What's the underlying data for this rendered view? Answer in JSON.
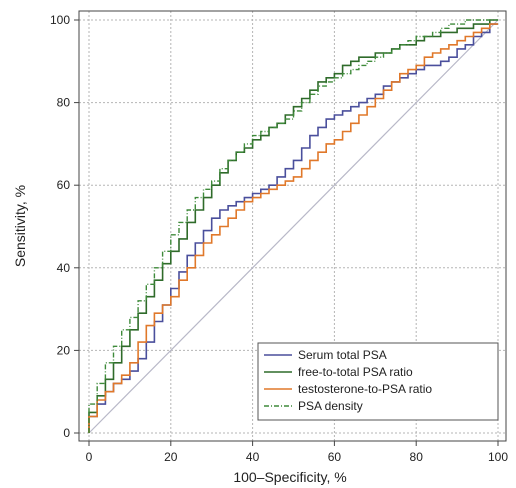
{
  "chart_data": {
    "type": "line",
    "xlabel": "100–Specificity, %",
    "ylabel": "Sensitivity, %",
    "xlim": [
      0,
      100
    ],
    "ylim": [
      0,
      100
    ],
    "xticks": [
      0,
      20,
      40,
      60,
      80,
      100
    ],
    "yticks": [
      0,
      20,
      40,
      60,
      80,
      100
    ],
    "grid": true,
    "legend_position": "bottom-right",
    "reference_line": {
      "x": [
        0,
        100
      ],
      "y": [
        0,
        100
      ],
      "color": "#b8b8c8"
    },
    "series": [
      {
        "name": "Serum total PSA",
        "color": "#4a4f9c",
        "style": "solid",
        "x": [
          0,
          2,
          4,
          6,
          8,
          10,
          12,
          14,
          16,
          18,
          20,
          22,
          24,
          26,
          28,
          30,
          32,
          34,
          36,
          38,
          40,
          42,
          44,
          46,
          48,
          50,
          52,
          54,
          56,
          58,
          60,
          62,
          64,
          66,
          68,
          70,
          72,
          74,
          76,
          78,
          80,
          82,
          84,
          86,
          88,
          90,
          92,
          94,
          96,
          98,
          100
        ],
        "y": [
          0,
          4,
          7,
          10,
          12,
          13,
          15,
          18,
          22,
          27,
          31,
          35,
          39,
          43,
          46,
          49,
          52,
          54,
          55,
          56,
          57,
          58,
          59,
          60,
          62,
          64,
          66,
          69,
          72,
          74,
          76,
          77,
          78,
          79,
          80,
          81,
          82,
          84,
          85,
          86,
          87,
          88,
          89,
          89,
          90,
          91,
          93,
          94,
          96,
          97,
          99
        ]
      },
      {
        "name": "free-to-total PSA ratio",
        "color": "#2f6b2a",
        "style": "solid",
        "x": [
          0,
          2,
          4,
          6,
          8,
          10,
          12,
          14,
          16,
          18,
          20,
          22,
          24,
          26,
          28,
          30,
          32,
          34,
          36,
          38,
          40,
          42,
          44,
          46,
          48,
          50,
          52,
          54,
          56,
          58,
          60,
          62,
          64,
          66,
          68,
          70,
          72,
          74,
          76,
          78,
          80,
          82,
          84,
          86,
          88,
          90,
          92,
          94,
          96,
          98,
          100
        ],
        "y": [
          0,
          5,
          9,
          13,
          17,
          21,
          25,
          29,
          33,
          37,
          41,
          44,
          47,
          51,
          54,
          57,
          60,
          63,
          66,
          68,
          69,
          71,
          72,
          74,
          75,
          77,
          79,
          81,
          83,
          85,
          86,
          87,
          89,
          90,
          91,
          91,
          92,
          92,
          93,
          94,
          94,
          95,
          96,
          96,
          97,
          97,
          98,
          98,
          99,
          99,
          100
        ]
      },
      {
        "name": "testosterone-to-PSA ratio",
        "color": "#e0782a",
        "style": "solid",
        "x": [
          0,
          2,
          4,
          6,
          8,
          10,
          12,
          14,
          16,
          18,
          20,
          22,
          24,
          26,
          28,
          30,
          32,
          34,
          36,
          38,
          40,
          42,
          44,
          46,
          48,
          50,
          52,
          54,
          56,
          58,
          60,
          62,
          64,
          66,
          68,
          70,
          72,
          74,
          76,
          78,
          80,
          82,
          84,
          86,
          88,
          90,
          92,
          94,
          96,
          98,
          100
        ],
        "y": [
          0,
          4,
          8,
          10,
          12,
          14,
          17,
          22,
          26,
          29,
          31,
          33,
          37,
          40,
          43,
          46,
          48,
          50,
          52,
          54,
          56,
          57,
          58,
          59,
          60,
          61,
          62,
          64,
          66,
          68,
          70,
          71,
          73,
          75,
          77,
          79,
          81,
          83,
          85,
          87,
          88,
          89,
          91,
          92,
          93,
          94,
          95,
          96,
          97,
          98,
          99
        ]
      },
      {
        "name": "PSA density",
        "color": "#3e8a3a",
        "style": "dashdot",
        "x": [
          0,
          2,
          4,
          6,
          8,
          10,
          12,
          14,
          16,
          18,
          20,
          22,
          24,
          26,
          28,
          30,
          32,
          34,
          36,
          38,
          40,
          42,
          44,
          46,
          48,
          50,
          52,
          54,
          56,
          58,
          60,
          62,
          64,
          66,
          68,
          70,
          72,
          74,
          76,
          78,
          80,
          82,
          84,
          86,
          88,
          90,
          92,
          94,
          96,
          98,
          100
        ],
        "y": [
          0,
          7,
          12,
          17,
          21,
          25,
          28,
          32,
          36,
          40,
          44,
          48,
          51,
          54,
          57,
          59,
          61,
          64,
          66,
          68,
          70,
          72,
          73,
          74,
          75,
          76,
          78,
          80,
          82,
          84,
          85,
          86,
          87,
          88,
          89,
          90,
          91,
          92,
          93,
          94,
          95,
          96,
          96,
          97,
          98,
          99,
          99,
          100,
          100,
          100,
          100
        ]
      }
    ]
  }
}
